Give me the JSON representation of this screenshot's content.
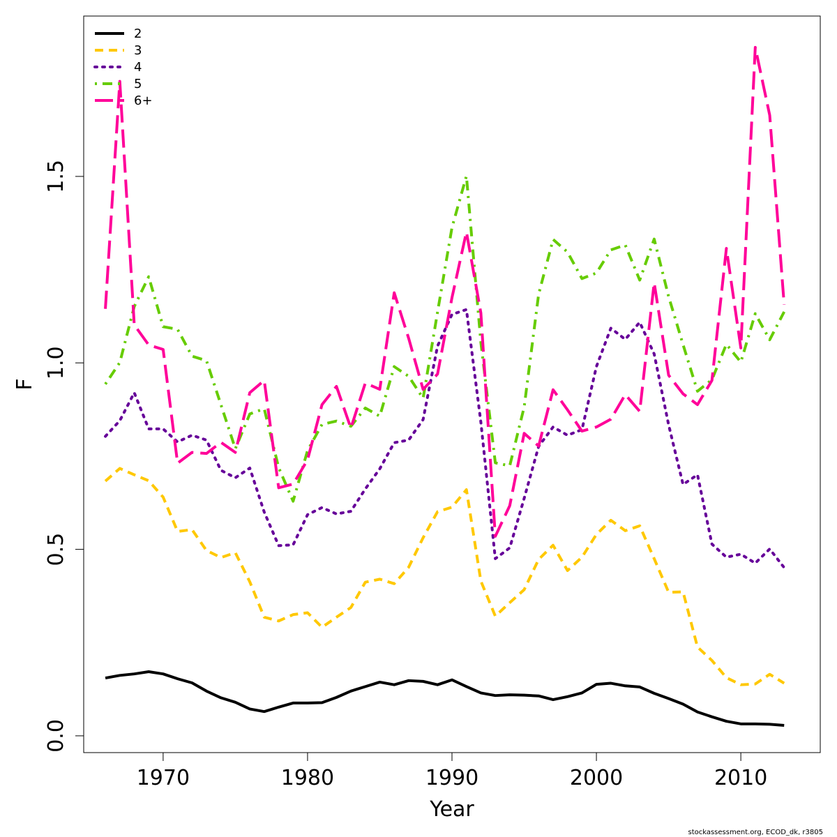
{
  "chart_data": {
    "type": "line",
    "xlabel": "Year",
    "ylabel": "F",
    "xlim": [
      1964.5,
      2015.5
    ],
    "ylim": [
      -0.045,
      1.93
    ],
    "x_ticks": [
      1970,
      1980,
      1990,
      2000,
      2010
    ],
    "x_tick_labels": [
      "1970",
      "1980",
      "1990",
      "2000",
      "2010"
    ],
    "y_ticks": [
      0,
      0.5,
      1,
      1.5
    ],
    "y_tick_labels": [
      "0.0",
      "0.5",
      "1.0",
      "1.5"
    ],
    "grid": false,
    "legend_position": "top-left",
    "x": [
      1966,
      1967,
      1968,
      1969,
      1970,
      1971,
      1972,
      1973,
      1974,
      1975,
      1976,
      1977,
      1978,
      1979,
      1980,
      1981,
      1982,
      1983,
      1984,
      1985,
      1986,
      1987,
      1988,
      1989,
      1990,
      1991,
      1992,
      1993,
      1994,
      1995,
      1996,
      1997,
      1998,
      1999,
      2000,
      2001,
      2002,
      2003,
      2004,
      2005,
      2006,
      2007,
      2008,
      2009,
      2010,
      2011,
      2012,
      2013
    ],
    "series": [
      {
        "name": "2",
        "color": "#000000",
        "dash": "solid",
        "values": [
          0.155,
          0.162,
          0.166,
          0.172,
          0.166,
          0.153,
          0.142,
          0.12,
          0.102,
          0.09,
          0.072,
          0.065,
          0.077,
          0.088,
          0.088,
          0.089,
          0.103,
          0.12,
          0.132,
          0.144,
          0.137,
          0.148,
          0.146,
          0.137,
          0.15,
          0.132,
          0.115,
          0.108,
          0.11,
          0.109,
          0.107,
          0.097,
          0.105,
          0.115,
          0.138,
          0.141,
          0.134,
          0.131,
          0.114,
          0.1,
          0.085,
          0.064,
          0.051,
          0.039,
          0.032,
          0.032,
          0.031,
          0.028
        ]
      },
      {
        "name": "3",
        "color": "#ffc800",
        "dash": "short-dash",
        "values": [
          0.683,
          0.717,
          0.7,
          0.684,
          0.64,
          0.548,
          0.553,
          0.497,
          0.478,
          0.491,
          0.413,
          0.318,
          0.308,
          0.325,
          0.33,
          0.291,
          0.318,
          0.344,
          0.412,
          0.42,
          0.408,
          0.452,
          0.531,
          0.601,
          0.613,
          0.66,
          0.415,
          0.321,
          0.357,
          0.392,
          0.473,
          0.511,
          0.443,
          0.479,
          0.54,
          0.578,
          0.55,
          0.563,
          0.475,
          0.385,
          0.386,
          0.238,
          0.202,
          0.156,
          0.137,
          0.139,
          0.165,
          0.141
        ]
      },
      {
        "name": "4",
        "color": "#660099",
        "dash": "dotted",
        "values": [
          0.803,
          0.845,
          0.92,
          0.823,
          0.823,
          0.788,
          0.806,
          0.793,
          0.712,
          0.692,
          0.718,
          0.6,
          0.51,
          0.512,
          0.593,
          0.612,
          0.595,
          0.602,
          0.662,
          0.716,
          0.786,
          0.793,
          0.848,
          1.045,
          1.13,
          1.143,
          0.841,
          0.475,
          0.504,
          0.637,
          0.776,
          0.828,
          0.806,
          0.821,
          0.99,
          1.093,
          1.063,
          1.109,
          1.024,
          0.834,
          0.674,
          0.7,
          0.514,
          0.479,
          0.487,
          0.463,
          0.501,
          0.451
        ]
      },
      {
        "name": "5",
        "color": "#66cc00",
        "dash": "dot-dash",
        "values": [
          0.943,
          1.001,
          1.151,
          1.231,
          1.097,
          1.09,
          1.018,
          1.006,
          0.888,
          0.77,
          0.863,
          0.877,
          0.719,
          0.629,
          0.765,
          0.835,
          0.844,
          0.83,
          0.879,
          0.857,
          0.99,
          0.964,
          0.905,
          1.136,
          1.363,
          1.501,
          1.055,
          0.732,
          0.724,
          0.882,
          1.184,
          1.331,
          1.297,
          1.226,
          1.241,
          1.303,
          1.316,
          1.222,
          1.332,
          1.178,
          1.049,
          0.924,
          0.955,
          1.05,
          1.002,
          1.132,
          1.062,
          1.137
        ]
      },
      {
        "name": "6+",
        "color": "#ff0099",
        "dash": "long-dash",
        "values": [
          1.145,
          1.755,
          1.102,
          1.048,
          1.036,
          0.731,
          0.76,
          0.757,
          0.787,
          0.76,
          0.92,
          0.953,
          0.665,
          0.675,
          0.74,
          0.888,
          0.937,
          0.825,
          0.946,
          0.929,
          1.188,
          1.066,
          0.929,
          0.97,
          1.175,
          1.351,
          1.134,
          0.535,
          0.617,
          0.811,
          0.777,
          0.928,
          0.874,
          0.817,
          0.828,
          0.849,
          0.915,
          0.87,
          1.215,
          0.967,
          0.917,
          0.888,
          0.953,
          1.307,
          1.04,
          1.846,
          1.664,
          1.156
        ]
      }
    ]
  },
  "credit": "stockassessment.org, ECOD_dk, r3805"
}
